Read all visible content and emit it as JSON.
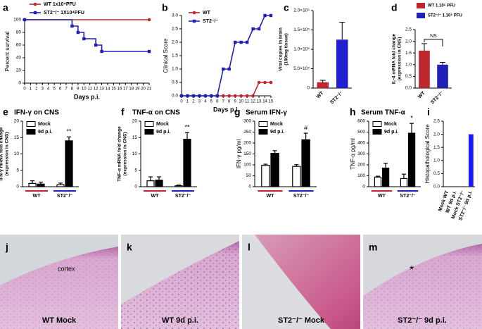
{
  "chart_data": [
    {
      "panel": "a",
      "type": "line",
      "step": true,
      "ylabel": "Percent survival",
      "xlabel": "Days p.i.",
      "xlim": [
        0,
        21
      ],
      "xticks": [
        0,
        1,
        2,
        3,
        4,
        5,
        6,
        7,
        8,
        9,
        10,
        11,
        12,
        13,
        14,
        15,
        16,
        17,
        18,
        19,
        20,
        21
      ],
      "ylim": [
        0,
        100
      ],
      "yticks": [
        0,
        20,
        40,
        60,
        80,
        100
      ],
      "series": [
        {
          "name": "WT 1x10⁴PFU",
          "color": "#c0262d",
          "marker": "circle",
          "x": [
            0,
            21
          ],
          "values": [
            100,
            100
          ]
        },
        {
          "name": "ST2⁻/⁻ 1X10⁴PFU",
          "color": "#2020b8",
          "marker": "square",
          "x": [
            0,
            8,
            9,
            10,
            12,
            13,
            21
          ],
          "values": [
            100,
            90,
            80,
            70,
            60,
            50,
            50
          ]
        }
      ]
    },
    {
      "panel": "b",
      "type": "line",
      "step": false,
      "ylabel": "Clinical Score",
      "xlabel": "Days p.i.",
      "xlim": [
        0,
        15
      ],
      "xticks": [
        0,
        1,
        2,
        3,
        4,
        5,
        6,
        7,
        8,
        9,
        10,
        11,
        12,
        13,
        14,
        15
      ],
      "ylim": [
        0,
        3
      ],
      "yticks": [
        {
          "value": 0,
          "label": "0.0"
        },
        0.5,
        {
          "value": 1,
          "label": "1.0"
        },
        1.5,
        {
          "value": 2,
          "label": "2.0"
        },
        2.5,
        {
          "value": 3,
          "label": "3.0"
        }
      ],
      "series": [
        {
          "name": "WT",
          "color": "#c0262d",
          "marker": "circle",
          "x": [
            0,
            1,
            2,
            3,
            4,
            5,
            6,
            7,
            8,
            9,
            10,
            11,
            12,
            13,
            14,
            15
          ],
          "values": [
            0,
            0,
            0,
            0,
            0,
            0,
            0,
            0,
            0,
            0,
            0,
            0,
            0,
            0.5,
            0.5,
            0.5
          ]
        },
        {
          "name": "ST2⁻/⁻",
          "color": "#2020b8",
          "marker": "square",
          "x": [
            0,
            1,
            2,
            3,
            4,
            5,
            6,
            7,
            8,
            9,
            10,
            11,
            12,
            13,
            14,
            15
          ],
          "values": [
            0,
            0,
            0,
            0,
            0,
            0,
            0,
            1,
            1,
            2,
            2,
            2,
            2.5,
            2.5,
            3,
            3
          ]
        }
      ]
    },
    {
      "panel": "c",
      "type": "bar",
      "ylabel": [
        "Viral copies in brain",
        "(100mg tissue)"
      ],
      "categories": [
        "WT",
        "ST2⁻/⁻"
      ],
      "values": [
        15000,
        125000
      ],
      "errors": [
        5000,
        45000
      ],
      "colors": [
        "#c0262d",
        "#2020d0"
      ],
      "ylim": [
        0,
        200000
      ],
      "yticks": [
        0,
        {
          "value": 50000,
          "label": "5.0×10⁴"
        },
        {
          "value": 100000,
          "label": "1.0×10⁵"
        },
        {
          "value": 150000,
          "label": "1.5×10⁵"
        },
        {
          "value": 200000,
          "label": "2.0×10⁵"
        }
      ]
    },
    {
      "panel": "d",
      "type": "bar",
      "ylabel": [
        "IL-4 mRNA fold change",
        "(expression in CNS)"
      ],
      "categories": [
        "WT",
        "ST2⁻/⁻"
      ],
      "values": [
        1.6,
        1.0
      ],
      "errors": [
        0.3,
        0.1
      ],
      "colors": [
        "#c0262d",
        "#2020b8"
      ],
      "legend": [
        "WT 1.10⁶ PFU",
        "ST2⁻/⁻ 1.10⁶ PFU"
      ],
      "annotation": "NS",
      "ylim": [
        0,
        2.5
      ],
      "yticks": [
        {
          "value": 0,
          "label": "0.0"
        },
        0.5,
        {
          "value": 1,
          "label": "1.0"
        },
        1.5,
        {
          "value": 2,
          "label": "2.0"
        },
        2.5
      ]
    },
    {
      "panel": "e",
      "type": "grouped_bar",
      "title": "IFN-γ on CNS",
      "ylabel": [
        "IFN-γ mRNA fold change",
        "(expression in CNS)"
      ],
      "categories": [
        "WT",
        "ST2⁻/⁻"
      ],
      "group_colors": [
        "#c0262d",
        "#2020b8"
      ],
      "annotation": "**",
      "ylim": [
        0,
        20
      ],
      "yticks": [
        0,
        5,
        10,
        15,
        20
      ],
      "series": [
        {
          "name": "Mock",
          "color": "#ffffff",
          "values": [
            1.0,
            0.6
          ],
          "errors": [
            0.8,
            0.5
          ]
        },
        {
          "name": "9d p.i.",
          "color": "#000000",
          "values": [
            0.8,
            14
          ],
          "errors": [
            0.6,
            1.2
          ]
        }
      ]
    },
    {
      "panel": "f",
      "type": "grouped_bar",
      "title": "TNF-α on CNS",
      "ylabel": [
        "TNF-α mRNA fold change",
        "(expression in CNS)"
      ],
      "categories": [
        "WT",
        "ST2⁻/⁻"
      ],
      "group_colors": [
        "#c0262d",
        "#2020b8"
      ],
      "annotation": "**",
      "ylim": [
        0,
        20
      ],
      "yticks": [
        0,
        5,
        10,
        15,
        20
      ],
      "series": [
        {
          "name": "Mock",
          "color": "#ffffff",
          "values": [
            1.8,
            0.3
          ],
          "errors": [
            1.2,
            0.2
          ]
        },
        {
          "name": "9d p.i.",
          "color": "#000000",
          "values": [
            2.0,
            14.5
          ],
          "errors": [
            1.0,
            2.0
          ]
        }
      ]
    },
    {
      "panel": "g",
      "type": "grouped_bar",
      "title": "Serum IFN-γ",
      "ylabel": "IFN-γ pg/ml",
      "categories": [
        "WT",
        "ST2⁻/⁻"
      ],
      "group_colors": [
        "#c0262d",
        "#2020b8"
      ],
      "annotation": "#",
      "ylim": [
        0,
        300
      ],
      "yticks": [
        0,
        50,
        100,
        150,
        200,
        250,
        300
      ],
      "series": [
        {
          "name": "Mock",
          "color": "#ffffff",
          "values": [
            98,
            93
          ],
          "errors": [
            5,
            8
          ]
        },
        {
          "name": "9d p.i.",
          "color": "#000000",
          "values": [
            153,
            215
          ],
          "errors": [
            12,
            30
          ]
        }
      ]
    },
    {
      "panel": "h",
      "type": "grouped_bar",
      "title": "Serum TNF-α",
      "ylabel": "TNF-α pg/ml",
      "categories": [
        "WT",
        "ST2⁻/⁻"
      ],
      "group_colors": [
        "#c0262d",
        "#2020b8"
      ],
      "annotation": "*",
      "ylim": [
        0,
        600
      ],
      "yticks": [
        0,
        100,
        200,
        300,
        400,
        500,
        600
      ],
      "series": [
        {
          "name": "Mock",
          "color": "#ffffff",
          "values": [
            88,
            75
          ],
          "errors": [
            8,
            40
          ]
        },
        {
          "name": "9d p.i.",
          "color": "#000000",
          "values": [
            170,
            490
          ],
          "errors": [
            45,
            90
          ]
        }
      ]
    },
    {
      "panel": "i",
      "type": "bar",
      "ylabel": "Histopathological Score",
      "categories": [
        "Mock WT",
        "WT 9d p.i.",
        "Mock ST2⁻/⁻",
        "ST2⁻/⁻ 9d p.i."
      ],
      "values": [
        0,
        0,
        0,
        2
      ],
      "colors": [
        "#1a1aff",
        "#1a1aff",
        "#1a1aff",
        "#1a1aff"
      ],
      "ylim": [
        0,
        2.5
      ],
      "yticks": [
        {
          "value": 0,
          "label": "0.0"
        },
        0.5,
        {
          "value": 1,
          "label": "1.0"
        },
        1.5,
        {
          "value": 2,
          "label": "2.0"
        },
        2.5
      ]
    }
  ],
  "images": [
    {
      "panel": "j",
      "caption": "WT Mock",
      "note": "cortex"
    },
    {
      "panel": "k",
      "caption": "WT 9d p.i."
    },
    {
      "panel": "l",
      "caption": "ST2⁻/⁻ Mock"
    },
    {
      "panel": "m",
      "caption": "ST2⁻/⁻ 9d p.i.",
      "note": "*"
    }
  ]
}
